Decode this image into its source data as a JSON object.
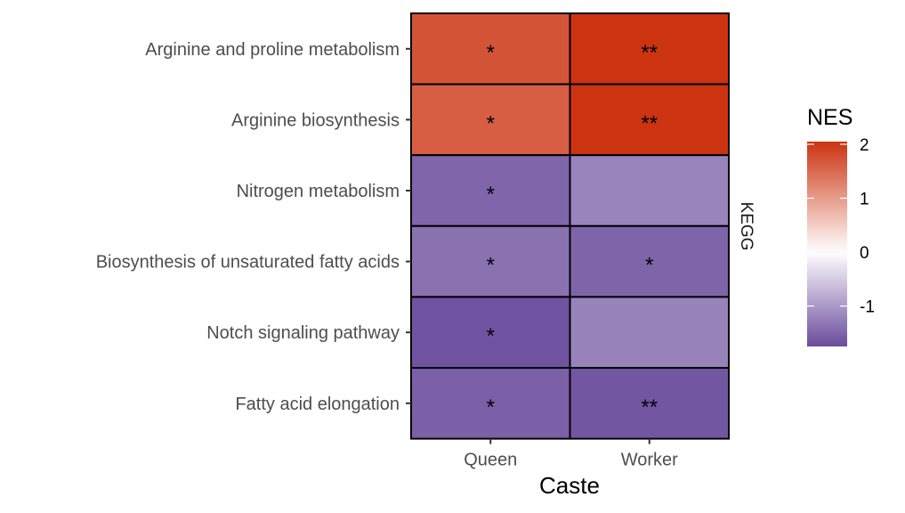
{
  "chart_data": {
    "type": "heatmap",
    "xlabel": "Caste",
    "x_categories": [
      "Queen",
      "Worker"
    ],
    "y_categories": [
      "Arginine and proline metabolism",
      "Arginine biosynthesis",
      "Nitrogen metabolism",
      "Biosynthesis of unsaturated fatty acids",
      "Notch signaling pathway",
      "Fatty acid elongation"
    ],
    "facet_label": "KEGG",
    "values": [
      [
        1.72,
        2.05
      ],
      [
        1.62,
        2.05
      ],
      [
        -1.5,
        -1.2
      ],
      [
        -1.38,
        -1.52
      ],
      [
        -1.68,
        -1.22
      ],
      [
        -1.55,
        -1.65
      ]
    ],
    "significance": [
      [
        "*",
        "**"
      ],
      [
        "*",
        "**"
      ],
      [
        "*",
        ""
      ],
      [
        "*",
        "*"
      ],
      [
        "*",
        ""
      ],
      [
        "*",
        "**"
      ]
    ],
    "legend": {
      "title": "NES",
      "ticks": [
        2,
        1,
        0,
        -1
      ],
      "range": [
        -1.75,
        2.05
      ]
    },
    "colors": {
      "low": "#6a4c9c",
      "mid": "#ffffff",
      "high": "#cc3311",
      "cell_border": "#000000"
    }
  }
}
